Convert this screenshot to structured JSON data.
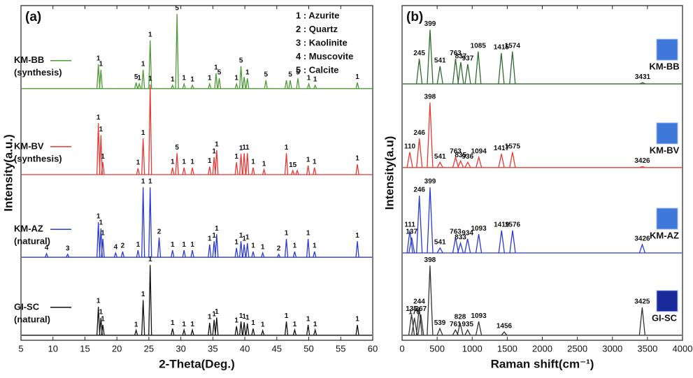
{
  "chart_data": [
    {
      "type": "peaks",
      "panel": "(a)",
      "x_label": "2-Theta(Deg.)",
      "y_label": "Intensity(a.u.)",
      "xlim": [
        5,
        60
      ],
      "xticks": [
        5,
        10,
        15,
        20,
        25,
        30,
        35,
        40,
        45,
        50,
        55,
        60
      ],
      "ylim": [
        0,
        100
      ],
      "phase_legend": [
        "1 : Azurite",
        "2 : Quartz",
        "3 : Kaolinite",
        "4 : Muscovite",
        "5 : Calcite"
      ],
      "series": [
        {
          "name": "KM-BB",
          "note": "(synthesis)",
          "color": "#4f9a37",
          "baseline": 75.2,
          "x": [
            17.1,
            17.5,
            23.0,
            23.5,
            24.1,
            25.2,
            28.7,
            29.4,
            30.5,
            31.8,
            34.5,
            35.5,
            36.0,
            38.7,
            39.4,
            39.9,
            40.4,
            43.3,
            46.5,
            47.1,
            48.3,
            50.0,
            51.0,
            57.6
          ],
          "values": [
            82.5,
            80.8,
            77.0,
            76.6,
            80.8,
            89.6,
            76.2,
            97.5,
            76.6,
            76.2,
            76.6,
            79.8,
            78.3,
            76.6,
            81.9,
            78.7,
            78.3,
            77.7,
            77.7,
            77.7,
            78.3,
            76.6,
            76.2,
            77.0
          ],
          "peak_labels": [
            "1",
            "1",
            "5",
            "1",
            "1",
            "1",
            "1",
            "5",
            "1",
            "1",
            "1",
            "1",
            "5",
            "1",
            "5",
            null,
            "1",
            "5",
            null,
            "5",
            "5",
            "1",
            "1",
            "1"
          ]
        },
        {
          "name": "KM-BV",
          "note": "(synthesis)",
          "color": "#e53935",
          "baseline": 49.5,
          "x": [
            17.1,
            17.5,
            17.8,
            23.3,
            24.1,
            25.2,
            28.7,
            29.4,
            30.5,
            31.8,
            34.5,
            35.2,
            35.6,
            38.7,
            39.4,
            39.9,
            40.4,
            41.3,
            43.0,
            46.5,
            47.5,
            48.2,
            49.9,
            50.9,
            57.6
          ],
          "values": [
            64.9,
            61.3,
            53.2,
            51.4,
            60.3,
            76.4,
            51.6,
            55.9,
            51.6,
            51.6,
            51.9,
            54.7,
            56.8,
            53.2,
            55.7,
            55.9,
            55.9,
            51.6,
            51.0,
            55.9,
            50.7,
            50.7,
            52.2,
            51.6,
            52.6
          ],
          "peak_labels": [
            "1",
            "1",
            "1",
            "1",
            "1",
            "1",
            "1",
            "5",
            "1",
            "1",
            "1",
            "1",
            "1",
            "1",
            "1",
            "1",
            "1",
            "1",
            "1",
            "1",
            "15",
            null,
            "1",
            "1",
            "1"
          ]
        },
        {
          "name": "KM-AZ",
          "note": "(natural)",
          "color": "#2b3bd1",
          "baseline": 24.8,
          "x": [
            9.0,
            12.3,
            17.1,
            17.5,
            17.8,
            19.8,
            20.9,
            23.3,
            24.1,
            25.2,
            26.6,
            28.7,
            30.5,
            31.8,
            34.5,
            35.2,
            35.6,
            38.7,
            39.4,
            39.9,
            40.4,
            41.3,
            42.8,
            45.3,
            46.5,
            47.8,
            49.9,
            50.9,
            57.6
          ],
          "values": [
            25.9,
            25.7,
            35.3,
            33.4,
            30.3,
            26.1,
            26.5,
            26.9,
            45.7,
            45.7,
            30.7,
            26.9,
            26.9,
            26.9,
            28.6,
            29.6,
            31.7,
            27.6,
            29.6,
            28.6,
            29.0,
            26.5,
            26.1,
            25.7,
            30.3,
            26.5,
            30.3,
            26.5,
            29.6
          ],
          "peak_labels": [
            "4",
            "3",
            "1",
            "1",
            "1",
            "4",
            "2",
            "1",
            "1",
            "1",
            "2",
            "1",
            "1",
            "1",
            "1",
            "1",
            "1",
            "1",
            "1",
            "1",
            "1",
            "1",
            "1",
            "2",
            "1",
            "1",
            "1",
            "1",
            "1"
          ]
        },
        {
          "name": "GI-SC",
          "note": "(natural)",
          "color": "#111111",
          "baseline": 1.5,
          "x": [
            17.1,
            17.5,
            17.8,
            23.0,
            24.1,
            25.2,
            28.7,
            30.5,
            31.8,
            34.5,
            35.2,
            35.6,
            38.7,
            39.4,
            39.9,
            40.4,
            41.3,
            42.8,
            46.5,
            47.8,
            49.9,
            51.0,
            57.6
          ],
          "values": [
            10.0,
            6.7,
            4.6,
            3.0,
            12.0,
            22.5,
            3.5,
            3.1,
            3.1,
            5.2,
            6.1,
            6.8,
            4.2,
            5.6,
            5.4,
            5.0,
            3.5,
            2.9,
            5.6,
            3.1,
            4.6,
            3.1,
            4.6
          ],
          "peak_labels": [
            "1",
            "1",
            "1",
            "1",
            "1",
            "1",
            "1",
            "1",
            "1",
            "1",
            "1",
            "1",
            "1",
            "1",
            "1",
            "1",
            "1",
            "1",
            "1",
            "1",
            "1",
            "1",
            "1"
          ]
        }
      ]
    },
    {
      "type": "raman",
      "panel": "(b)",
      "x_label": "Raman shift(cm⁻¹)",
      "y_label": "Intensity(a.u)",
      "xlim": [
        0,
        4000
      ],
      "xticks": [
        0,
        500,
        1000,
        1500,
        2000,
        2500,
        3000,
        3500,
        4000
      ],
      "ylim": [
        0,
        100
      ],
      "series": [
        {
          "name": "KM-BB",
          "color": "#2e6b2a",
          "baseline": 76.6,
          "x": [
            245,
            399,
            541,
            763,
            837,
            937,
            1085,
            1415,
            1574,
            3431
          ],
          "values": [
            84.1,
            92.8,
            81.9,
            84.1,
            83.1,
            82.5,
            86.3,
            85.8,
            86.3,
            77.0
          ]
        },
        {
          "name": "KM-BV",
          "color": "#e53935",
          "baseline": 51.6,
          "x": [
            110,
            246,
            398,
            541,
            763,
            835,
            936,
            1094,
            1417,
            1575,
            3426
          ],
          "values": [
            56.2,
            60.3,
            71.0,
            53.2,
            54.7,
            53.6,
            53.2,
            54.7,
            55.7,
            56.2,
            51.9
          ]
        },
        {
          "name": "KM-AZ",
          "color": "#2b3bd1",
          "baseline": 26.1,
          "x": [
            111,
            137,
            246,
            399,
            541,
            763,
            833,
            934,
            1093,
            1419,
            1576,
            3426
          ],
          "values": [
            32.8,
            30.7,
            43.2,
            45.7,
            27.6,
            30.7,
            29.0,
            30.3,
            31.7,
            32.8,
            32.8,
            28.6
          ]
        },
        {
          "name": "GI-SC",
          "color": "#333333",
          "baseline": 1.5,
          "x": [
            135,
            176,
            244,
            267,
            398,
            539,
            761,
            828,
            935,
            1093,
            1456,
            3425
          ],
          "values": [
            7.7,
            6.7,
            9.8,
            7.7,
            22.3,
            3.5,
            3.1,
            5.2,
            3.1,
            5.6,
            2.5,
            9.8
          ]
        }
      ]
    }
  ]
}
